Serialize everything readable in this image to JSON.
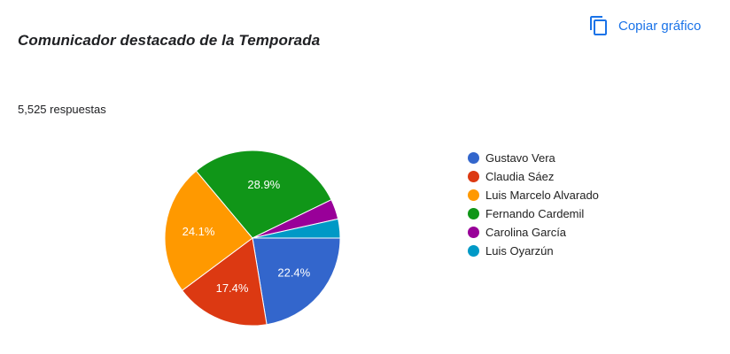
{
  "header": {
    "title": "Comunicador destacado de la Temporada",
    "copy_label": "Copiar gráfico"
  },
  "summary": {
    "responses": "5,525 respuestas"
  },
  "colors": {
    "accent": "#1a73e8"
  },
  "icons": {
    "copy": "copy-icon"
  },
  "chart_data": {
    "type": "pie",
    "title": "Comunicador destacado de la Temporada",
    "legend_position": "right",
    "slices": [
      {
        "label": "Gustavo Vera",
        "value": 22.4,
        "color": "#3366cc",
        "data_label": "22.4%"
      },
      {
        "label": "Claudia Sáez",
        "value": 17.4,
        "color": "#dc3912",
        "data_label": "17.4%"
      },
      {
        "label": "Luis Marcelo Alvarado",
        "value": 24.1,
        "color": "#ff9900",
        "data_label": "24.1%"
      },
      {
        "label": "Fernando Cardemil",
        "value": 28.9,
        "color": "#109618",
        "data_label": "28.9%"
      },
      {
        "label": "Carolina García",
        "value": 3.7,
        "color": "#990099",
        "data_label": ""
      },
      {
        "label": "Luis Oyarzún",
        "value": 3.5,
        "color": "#0099c6",
        "data_label": ""
      }
    ]
  }
}
